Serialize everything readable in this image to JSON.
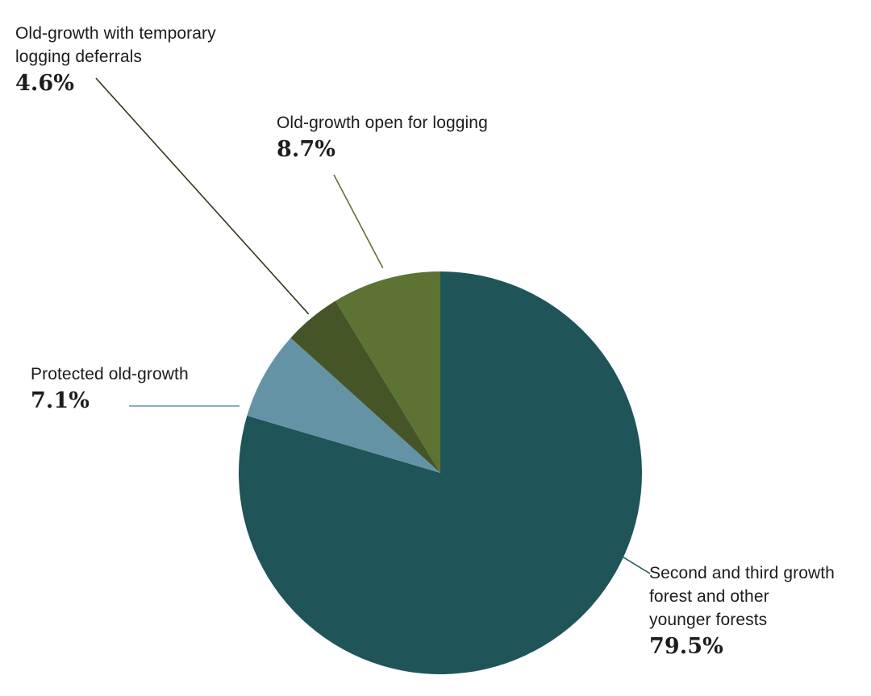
{
  "chart_data": {
    "type": "pie",
    "title": "",
    "start_angle_deg": 0,
    "direction": "clockwise",
    "slices": [
      {
        "id": "young",
        "label": "Second and third growth forest and other younger forests",
        "label_lines": [
          "Second and third growth",
          "forest and other",
          "younger forests"
        ],
        "value": 79.5,
        "display": "79.5%",
        "color": "#1f5459"
      },
      {
        "id": "protected",
        "label": "Protected old-growth",
        "label_lines": [
          "Protected old-growth"
        ],
        "value": 7.1,
        "display": "7.1%",
        "color": "#6593a6"
      },
      {
        "id": "deferral",
        "label": "Old-growth with temporary logging deferrals",
        "label_lines": [
          "Old-growth with temporary",
          "logging deferrals"
        ],
        "value": 4.6,
        "display": "4.6%",
        "color": "#465527"
      },
      {
        "id": "open",
        "label": "Old-growth open for logging",
        "label_lines": [
          "Old-growth open for logging"
        ],
        "value": 8.7,
        "display": "8.7%",
        "color": "#5c7334"
      }
    ],
    "leader_colors": {
      "young": "#1f5459",
      "protected": "#6593a6",
      "deferral": "#2f3a1a",
      "open": "#5c7334"
    }
  }
}
